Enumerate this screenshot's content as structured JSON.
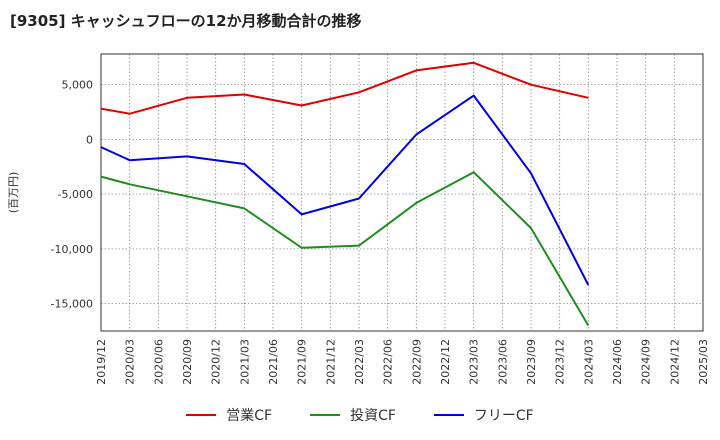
{
  "chart_data": {
    "type": "line",
    "title": "[9305]  キャッシュフローの12か月移動合計の推移",
    "ylabel": "(百万円)",
    "xlabel": "",
    "x": [
      "2019/12",
      "2020/03",
      "2020/06",
      "2020/09",
      "2020/12",
      "2021/03",
      "2021/06",
      "2021/09",
      "2021/12",
      "2022/03",
      "2022/06",
      "2022/09",
      "2022/12",
      "2023/03",
      "2023/06",
      "2023/09",
      "2023/12",
      "2024/03",
      "2024/06",
      "2024/09",
      "2024/12",
      "2025/03"
    ],
    "ylim": [
      -17500,
      7800
    ],
    "yticks": [
      5000,
      0,
      -5000,
      -10000,
      -15000
    ],
    "ytick_labels": [
      "5,000",
      "0",
      "-5,000",
      "-10,000",
      "-15,000"
    ],
    "grid": true,
    "legend_position": "bottom",
    "series": [
      {
        "name": "営業CF",
        "color": "#dd0000",
        "points": [
          [
            "2019/12",
            2800
          ],
          [
            "2020/03",
            2350
          ],
          [
            "2020/09",
            3800
          ],
          [
            "2021/03",
            4100
          ],
          [
            "2021/09",
            3100
          ],
          [
            "2022/03",
            4300
          ],
          [
            "2022/09",
            6300
          ],
          [
            "2023/03",
            7000
          ],
          [
            "2023/09",
            5000
          ],
          [
            "2024/03",
            3800
          ]
        ]
      },
      {
        "name": "投資CF",
        "color": "#228b22",
        "points": [
          [
            "2019/12",
            -3400
          ],
          [
            "2020/03",
            -4100
          ],
          [
            "2020/09",
            -5200
          ],
          [
            "2021/03",
            -6300
          ],
          [
            "2021/09",
            -9900
          ],
          [
            "2022/03",
            -9700
          ],
          [
            "2022/09",
            -5800
          ],
          [
            "2023/03",
            -3000
          ],
          [
            "2023/09",
            -8100
          ],
          [
            "2024/03",
            -17000
          ]
        ]
      },
      {
        "name": "フリーCF",
        "color": "#0000dd",
        "points": [
          [
            "2019/12",
            -700
          ],
          [
            "2020/03",
            -1900
          ],
          [
            "2020/09",
            -1550
          ],
          [
            "2021/03",
            -2250
          ],
          [
            "2021/09",
            -6850
          ],
          [
            "2022/03",
            -5400
          ],
          [
            "2022/09",
            450
          ],
          [
            "2023/03",
            4000
          ],
          [
            "2023/09",
            -3100
          ],
          [
            "2024/03",
            -13300
          ]
        ]
      }
    ]
  }
}
